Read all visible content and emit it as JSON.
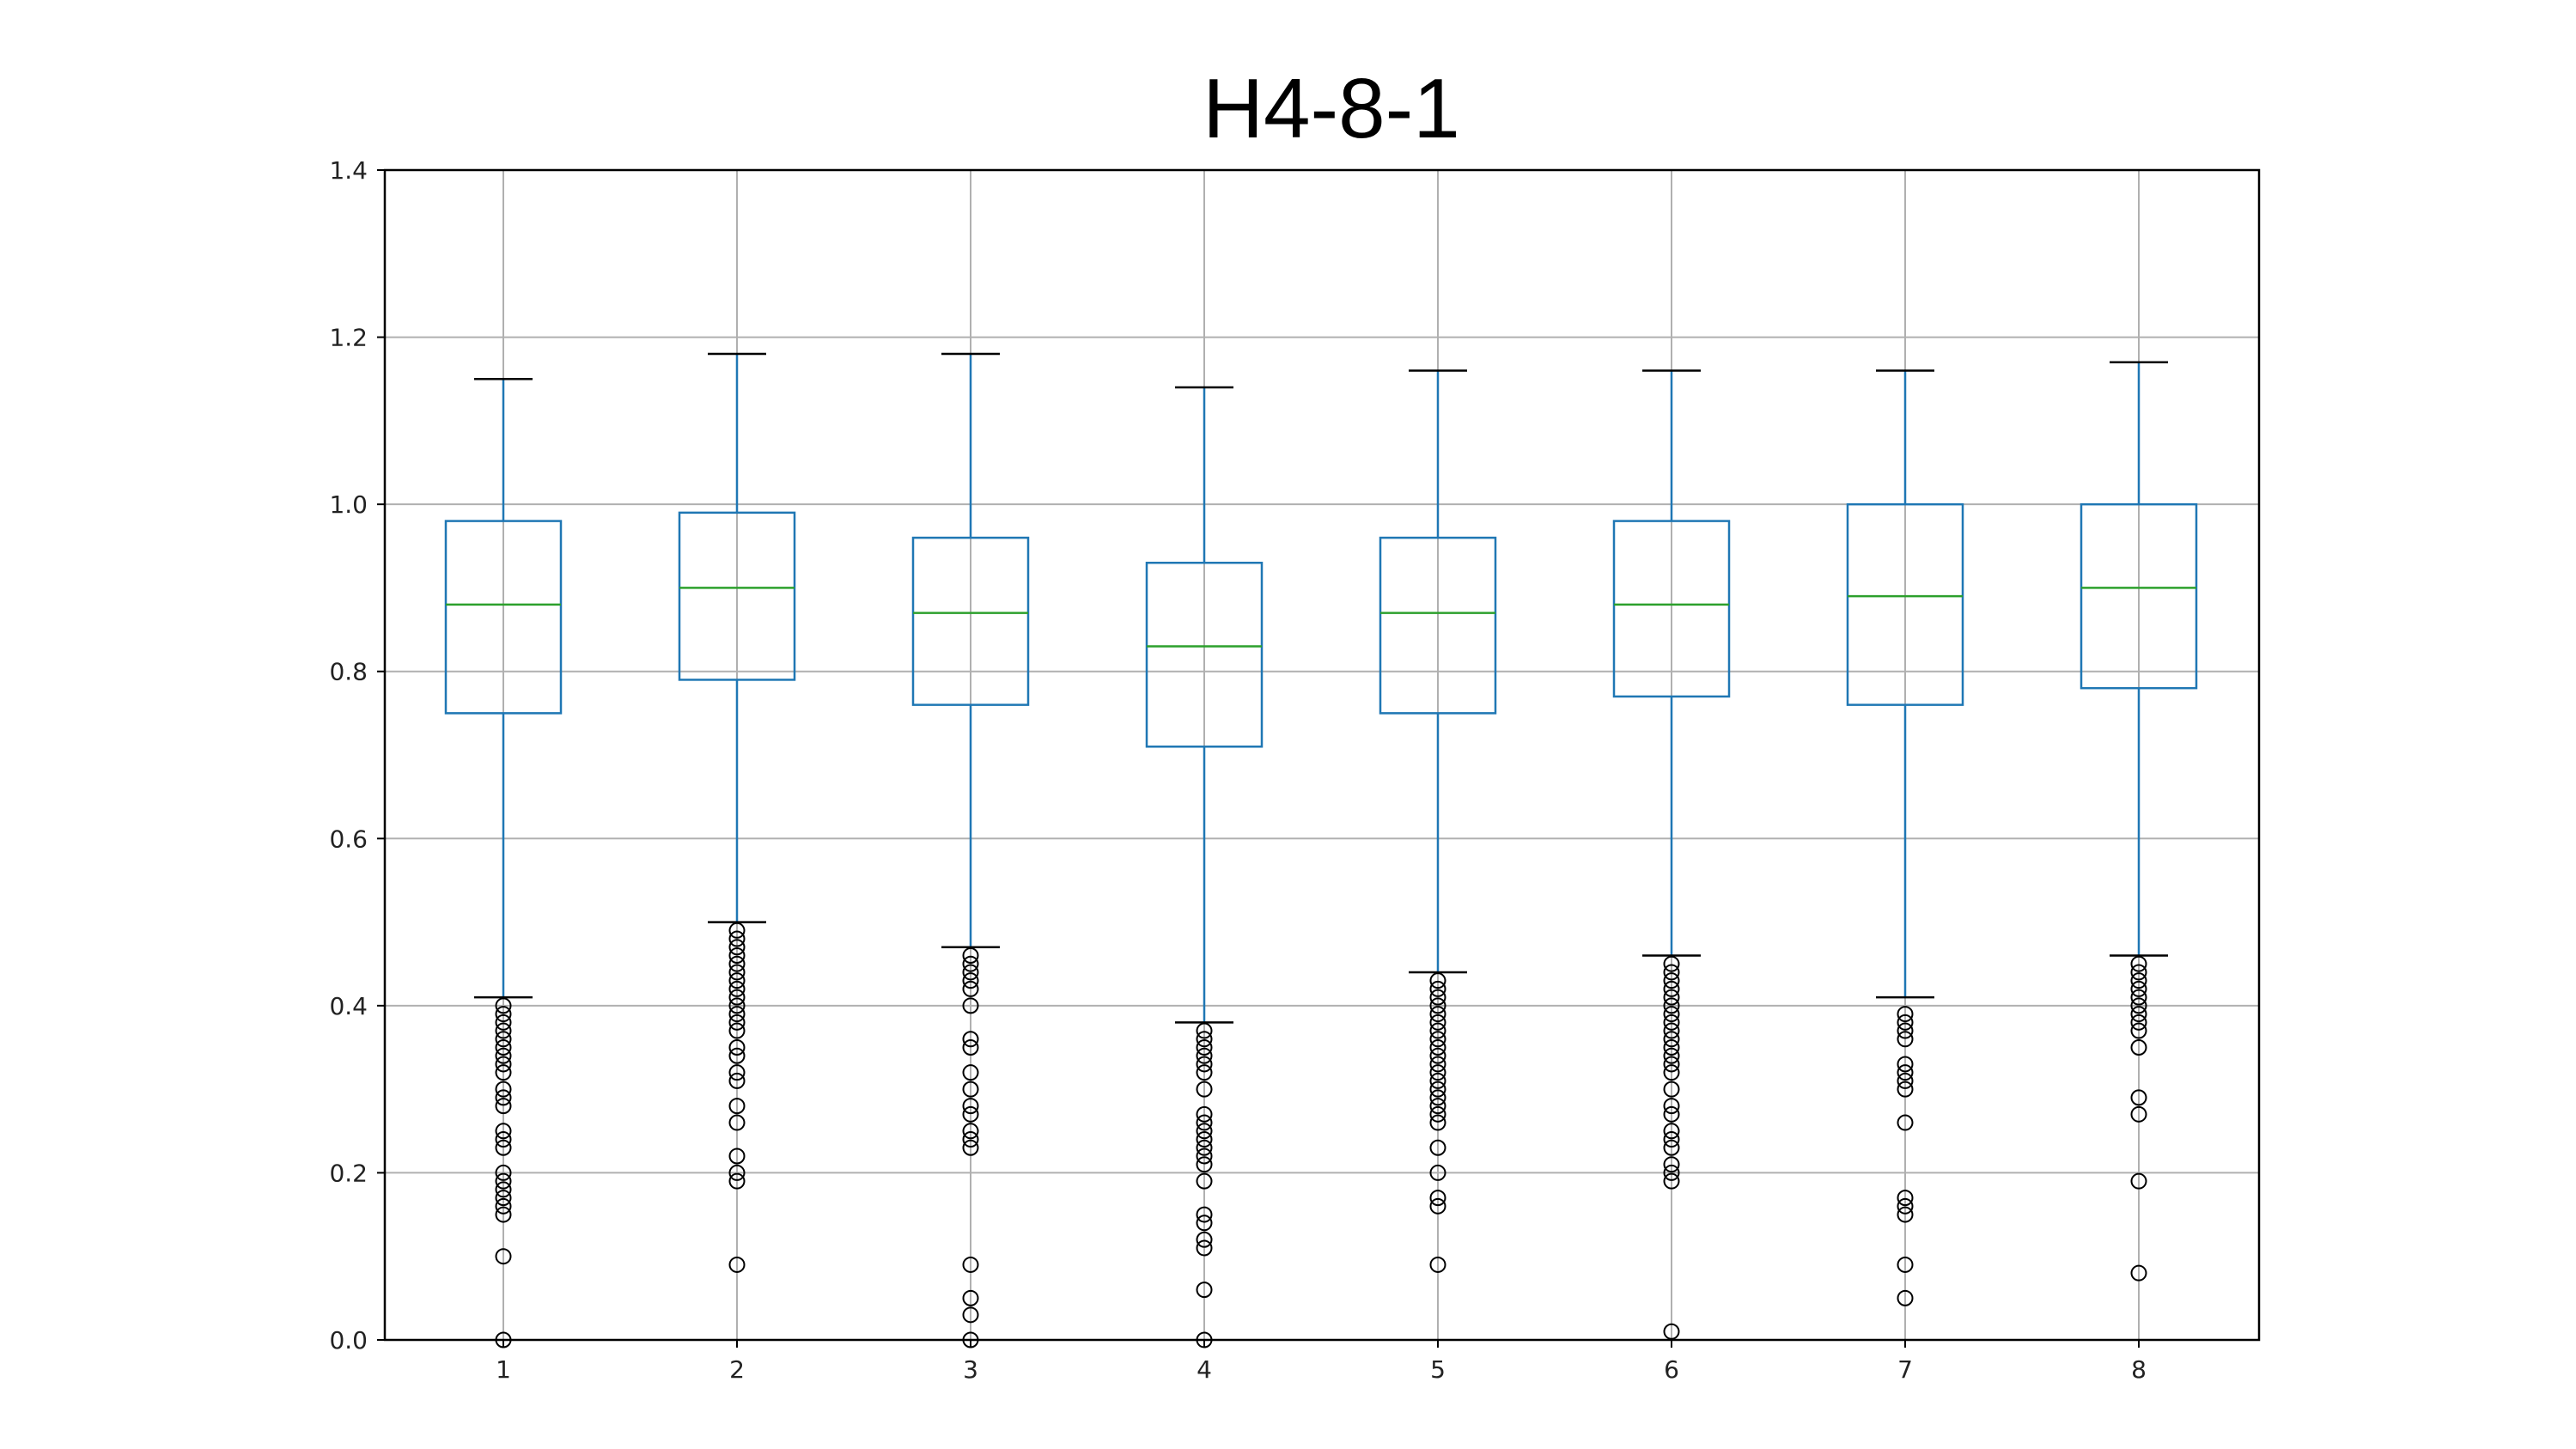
{
  "chart_data": {
    "type": "box",
    "title": "H4-8-1",
    "xlabel": "",
    "ylabel": "",
    "categories": [
      "1",
      "2",
      "3",
      "4",
      "5",
      "6",
      "7",
      "8"
    ],
    "ylim": [
      0.0,
      1.4
    ],
    "yticks": [
      "0.0",
      "0.2",
      "0.4",
      "0.6",
      "0.8",
      "1.0",
      "1.2",
      "1.4"
    ],
    "grid": true,
    "colors": {
      "box": "#1f77b4",
      "median": "#2ca02c",
      "whisker_cap": "#000000",
      "flier": "#000000",
      "grid": "#b0b0b0"
    },
    "boxes": [
      {
        "label": "1",
        "whislo": 0.41,
        "q1": 0.75,
        "med": 0.88,
        "q3": 0.98,
        "whishi": 1.15,
        "fliers": [
          0.4,
          0.39,
          0.38,
          0.37,
          0.36,
          0.35,
          0.34,
          0.33,
          0.32,
          0.3,
          0.29,
          0.28,
          0.25,
          0.24,
          0.23,
          0.2,
          0.19,
          0.18,
          0.17,
          0.16,
          0.15,
          0.1,
          0.0
        ]
      },
      {
        "label": "2",
        "whislo": 0.5,
        "q1": 0.79,
        "med": 0.9,
        "q3": 0.99,
        "whishi": 1.18,
        "fliers": [
          0.49,
          0.48,
          0.47,
          0.46,
          0.45,
          0.44,
          0.43,
          0.42,
          0.41,
          0.4,
          0.39,
          0.38,
          0.37,
          0.35,
          0.34,
          0.32,
          0.31,
          0.28,
          0.26,
          0.22,
          0.2,
          0.19,
          0.09
        ]
      },
      {
        "label": "3",
        "whislo": 0.47,
        "q1": 0.76,
        "med": 0.87,
        "q3": 0.96,
        "whishi": 1.18,
        "fliers": [
          0.46,
          0.45,
          0.44,
          0.43,
          0.42,
          0.4,
          0.36,
          0.35,
          0.32,
          0.3,
          0.28,
          0.27,
          0.25,
          0.24,
          0.23,
          0.09,
          0.05,
          0.03,
          0.0
        ]
      },
      {
        "label": "4",
        "whislo": 0.38,
        "q1": 0.71,
        "med": 0.83,
        "q3": 0.93,
        "whishi": 1.14,
        "fliers": [
          0.37,
          0.36,
          0.35,
          0.34,
          0.33,
          0.32,
          0.3,
          0.27,
          0.26,
          0.25,
          0.24,
          0.23,
          0.22,
          0.21,
          0.19,
          0.15,
          0.14,
          0.12,
          0.11,
          0.06,
          0.0
        ]
      },
      {
        "label": "5",
        "whislo": 0.44,
        "q1": 0.75,
        "med": 0.87,
        "q3": 0.96,
        "whishi": 1.16,
        "fliers": [
          0.43,
          0.42,
          0.41,
          0.4,
          0.39,
          0.38,
          0.37,
          0.36,
          0.35,
          0.34,
          0.33,
          0.32,
          0.31,
          0.3,
          0.29,
          0.28,
          0.27,
          0.26,
          0.23,
          0.2,
          0.17,
          0.16,
          0.09
        ]
      },
      {
        "label": "6",
        "whislo": 0.46,
        "q1": 0.77,
        "med": 0.88,
        "q3": 0.98,
        "whishi": 1.16,
        "fliers": [
          0.45,
          0.44,
          0.43,
          0.42,
          0.41,
          0.4,
          0.39,
          0.38,
          0.37,
          0.36,
          0.35,
          0.34,
          0.33,
          0.32,
          0.3,
          0.28,
          0.27,
          0.25,
          0.24,
          0.23,
          0.21,
          0.2,
          0.19,
          0.01
        ]
      },
      {
        "label": "7",
        "whislo": 0.41,
        "q1": 0.76,
        "med": 0.89,
        "q3": 1.0,
        "whishi": 1.16,
        "fliers": [
          0.39,
          0.38,
          0.37,
          0.36,
          0.33,
          0.32,
          0.31,
          0.3,
          0.26,
          0.17,
          0.16,
          0.15,
          0.09,
          0.05
        ]
      },
      {
        "label": "8",
        "whislo": 0.46,
        "q1": 0.78,
        "med": 0.9,
        "q3": 1.0,
        "whishi": 1.17,
        "fliers": [
          0.45,
          0.44,
          0.43,
          0.42,
          0.41,
          0.4,
          0.39,
          0.38,
          0.37,
          0.35,
          0.29,
          0.27,
          0.19,
          0.08
        ]
      }
    ]
  }
}
